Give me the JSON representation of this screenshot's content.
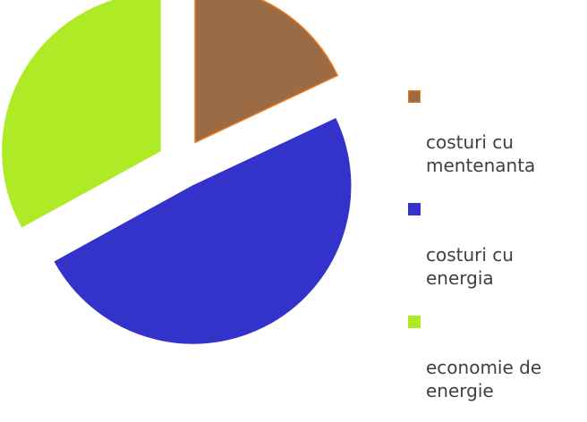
{
  "chart_data": {
    "type": "pie",
    "title": "",
    "slices": [
      {
        "label": "costuri cu\nmentenanta",
        "value": 18,
        "color": "#9B6B45",
        "stroke": "#F07A1A"
      },
      {
        "label": "costuri cu\nenergia",
        "value": 49,
        "color": "#3333CC",
        "stroke": "#3333CC"
      },
      {
        "label": "economie de\nenergie",
        "value": 33,
        "color": "#AEEA26",
        "stroke": "#AEEA26"
      }
    ],
    "exploded": true,
    "legend": "right"
  }
}
